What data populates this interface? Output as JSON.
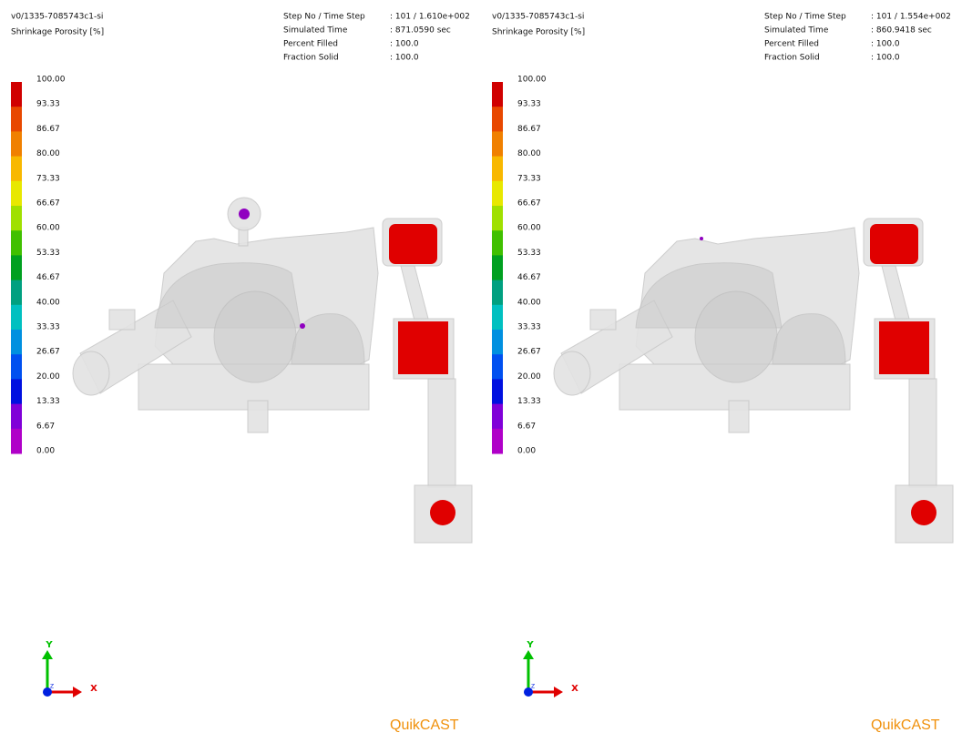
{
  "panels": [
    {
      "title": "v0/1335-7085743c1-si",
      "result": "Shrinkage Porosity [%]",
      "info": [
        {
          "label": "Step No / Time Step",
          "value": ": 101 / 1.610e+002"
        },
        {
          "label": "Simulated Time",
          "value": ": 871.0590 sec"
        },
        {
          "label": "Percent Filled",
          "value": ": 100.0"
        },
        {
          "label": "Fraction Solid",
          "value": ": 100.0"
        }
      ],
      "legend": [
        "100.00",
        "93.33",
        "86.67",
        "80.00",
        "73.33",
        "66.67",
        "60.00",
        "53.33",
        "46.67",
        "40.00",
        "33.33",
        "26.67",
        "20.00",
        "13.33",
        "6.67",
        "0.00"
      ],
      "axes": {
        "y": "Y",
        "x": "X",
        "z": "Z"
      },
      "brand": "QuikCAST"
    },
    {
      "title": "v0/1335-7085743c1-si",
      "result": "Shrinkage Porosity [%]",
      "info": [
        {
          "label": "Step No / Time Step",
          "value": ": 101 / 1.554e+002"
        },
        {
          "label": "Simulated Time",
          "value": ": 860.9418 sec"
        },
        {
          "label": "Percent Filled",
          "value": ": 100.0"
        },
        {
          "label": "Fraction Solid",
          "value": ": 100.0"
        }
      ],
      "legend": [
        "100.00",
        "93.33",
        "86.67",
        "80.00",
        "73.33",
        "66.67",
        "60.00",
        "53.33",
        "46.67",
        "40.00",
        "33.33",
        "26.67",
        "20.00",
        "13.33",
        "6.67",
        "0.00"
      ],
      "axes": {
        "y": "Y",
        "x": "X",
        "z": "Z"
      },
      "brand": "QuikCAST"
    }
  ]
}
